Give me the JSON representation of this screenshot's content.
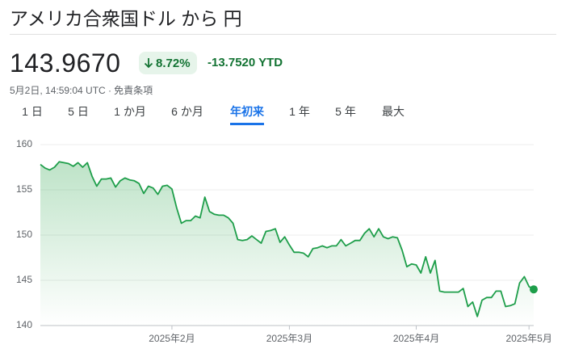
{
  "header": {
    "title": "アメリカ合衆国ドル から 円",
    "price": "143.9670",
    "change_percent": "8.72%",
    "change_ytd": "-13.7520 YTD",
    "timestamp": "5月2日, 14:59:04 UTC ·",
    "disclaimer": "免責条項"
  },
  "tabs": {
    "items": [
      "1 日",
      "5 日",
      "1 か月",
      "6 か月",
      "年初来",
      "1 年",
      "5 年",
      "最大"
    ],
    "selected": 4
  },
  "chart_data": {
    "type": "line",
    "color": "#1e9e4a",
    "area": true,
    "grid": true,
    "last_point_marker": true,
    "ylim": [
      140,
      160
    ],
    "yticks": [
      140,
      145,
      150,
      155,
      160
    ],
    "categories": [
      null,
      null,
      null,
      null,
      null,
      null,
      null,
      null,
      null,
      null,
      null,
      null,
      null,
      null,
      null,
      null,
      null,
      null,
      null,
      null,
      null,
      null,
      null,
      null,
      null,
      null,
      null,
      null,
      "2025年2月",
      null,
      null,
      null,
      null,
      null,
      null,
      null,
      null,
      null,
      null,
      null,
      null,
      null,
      null,
      null,
      null,
      null,
      null,
      null,
      null,
      null,
      null,
      null,
      null,
      "2025年3月",
      null,
      null,
      null,
      null,
      null,
      null,
      null,
      null,
      null,
      null,
      null,
      null,
      null,
      null,
      null,
      null,
      null,
      null,
      null,
      null,
      null,
      null,
      null,
      null,
      null,
      null,
      "2025年4月",
      null,
      null,
      null,
      null,
      null,
      null,
      null,
      null,
      null,
      null,
      null,
      null,
      null,
      null,
      null,
      null,
      null,
      null,
      null,
      null,
      null,
      null,
      null,
      "2025年5月",
      null
    ],
    "values": [
      157.8,
      157.4,
      157.2,
      157.5,
      158.1,
      158.0,
      157.9,
      157.6,
      158.0,
      157.5,
      158.0,
      156.5,
      155.4,
      156.2,
      156.2,
      156.3,
      155.3,
      156.0,
      156.3,
      156.1,
      156.0,
      155.7,
      154.6,
      155.4,
      155.2,
      154.5,
      155.4,
      155.5,
      155.1,
      153.0,
      151.3,
      151.6,
      151.6,
      152.1,
      151.9,
      154.2,
      152.6,
      152.3,
      152.2,
      152.2,
      151.9,
      151.3,
      149.5,
      149.4,
      149.5,
      149.9,
      149.5,
      149.1,
      150.4,
      150.5,
      150.7,
      149.2,
      149.8,
      148.9,
      148.1,
      148.1,
      148.0,
      147.6,
      148.5,
      148.6,
      148.8,
      148.6,
      148.8,
      148.8,
      149.5,
      148.8,
      149.1,
      149.4,
      149.4,
      150.2,
      150.7,
      149.8,
      150.7,
      149.8,
      149.6,
      149.8,
      149.7,
      148.3,
      146.5,
      146.8,
      146.7,
      145.8,
      147.6,
      145.8,
      147.2,
      143.8,
      143.7,
      143.7,
      143.7,
      143.7,
      144.1,
      142.1,
      142.6,
      141.0,
      142.8,
      143.1,
      143.1,
      143.8,
      143.8,
      142.1,
      142.2,
      142.4,
      144.7,
      145.4,
      144.3,
      144.0
    ]
  }
}
